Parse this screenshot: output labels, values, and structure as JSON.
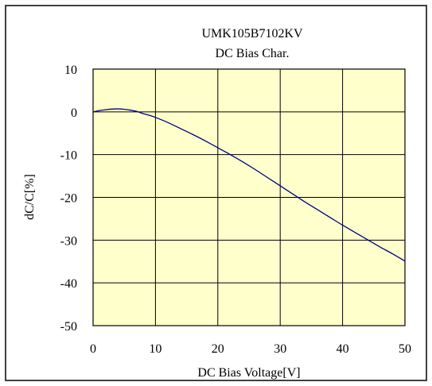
{
  "chart_data": {
    "type": "line",
    "title": "UMK105B7102KV",
    "subtitle": "DC Bias Char.",
    "xlabel": "DC Bias Voltage[V]",
    "ylabel": "dC/C[%]",
    "xlim": [
      0,
      50
    ],
    "ylim": [
      -50,
      10
    ],
    "xticks": [
      0,
      10,
      20,
      30,
      40,
      50
    ],
    "yticks": [
      10,
      0,
      -10,
      -20,
      -30,
      -40,
      -50
    ],
    "grid": true,
    "legend": "none",
    "colors": {
      "plot_background": "#ffffcc",
      "line": "#000080",
      "grid": "#000000",
      "frame": "#000000"
    },
    "series": [
      {
        "x": [
          0,
          1,
          2,
          3,
          4,
          5,
          6,
          7,
          8,
          9,
          10,
          12,
          14,
          16,
          18,
          20,
          22,
          24,
          26,
          28,
          30,
          32,
          34,
          36,
          38,
          40,
          42,
          44,
          46,
          48,
          50
        ],
        "values": [
          0,
          0.3,
          0.5,
          0.65,
          0.7,
          0.6,
          0.4,
          0.1,
          -0.4,
          -0.8,
          -1.3,
          -2.5,
          -3.9,
          -5.3,
          -6.8,
          -8.4,
          -10.0,
          -11.7,
          -13.5,
          -15.4,
          -17.3,
          -19.2,
          -21.1,
          -22.9,
          -24.7,
          -26.5,
          -28.2,
          -29.9,
          -31.6,
          -33.2,
          -34.9
        ]
      }
    ]
  }
}
